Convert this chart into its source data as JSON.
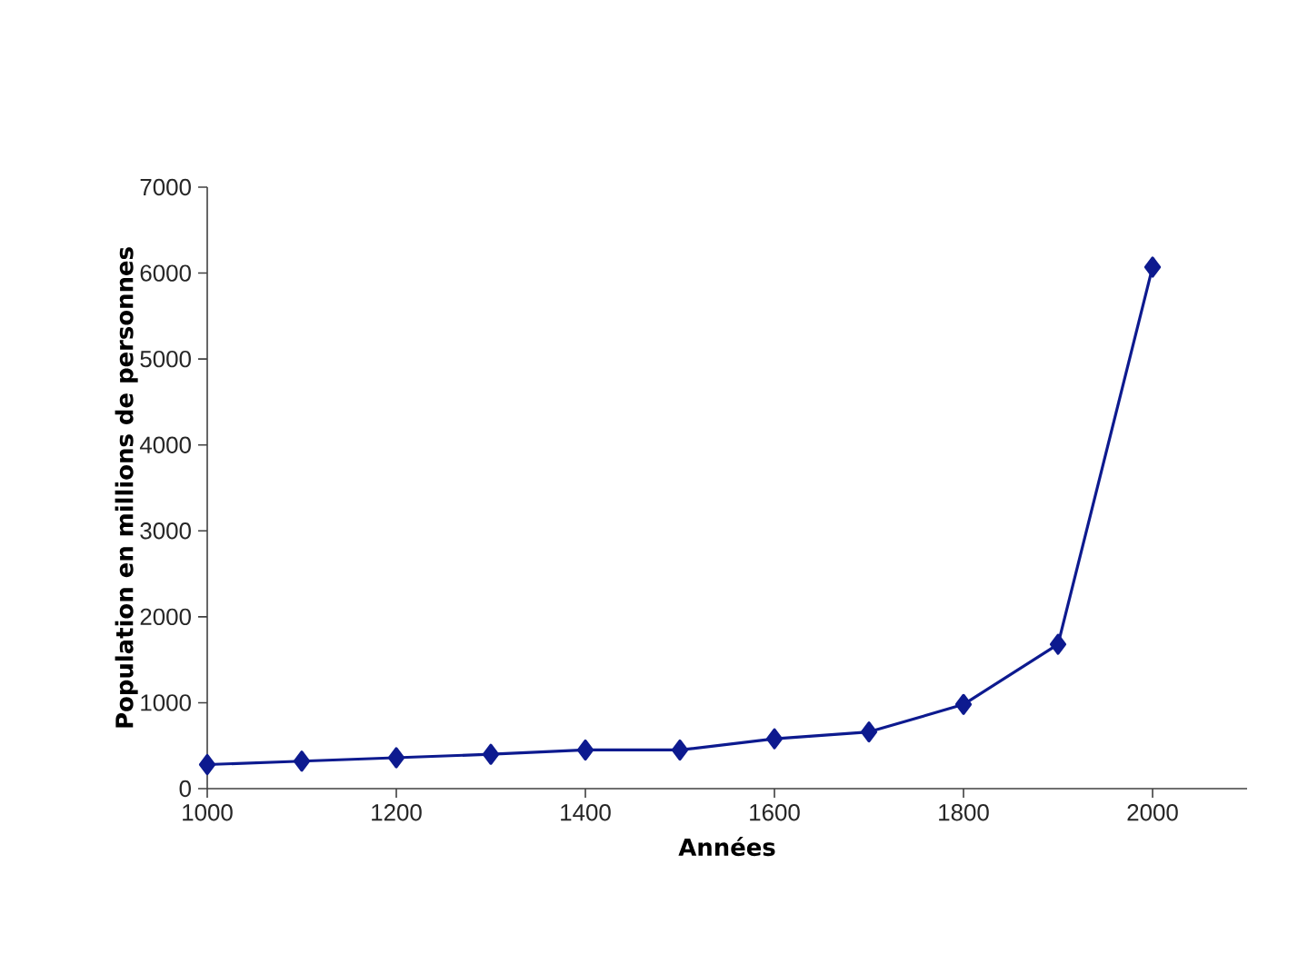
{
  "chart_data": {
    "type": "line",
    "xlabel": "Années",
    "ylabel": "Population en millions de personnes",
    "x": [
      1000,
      1100,
      1200,
      1300,
      1400,
      1500,
      1600,
      1700,
      1800,
      1900,
      2000
    ],
    "series": [
      {
        "color": "#0d1a8f",
        "values": [
          280,
          320,
          360,
          400,
          450,
          450,
          580,
          660,
          980,
          1680,
          6070
        ]
      }
    ],
    "xlim": [
      1000,
      2100
    ],
    "xticks": [
      1000,
      1200,
      1400,
      1600,
      1800,
      2000
    ],
    "ylim": [
      0,
      7000
    ],
    "yticks": [
      0,
      1000,
      2000,
      3000,
      4000,
      5000,
      6000,
      7000
    ],
    "grid": false,
    "marker": "diamond",
    "line_style": "solid"
  }
}
